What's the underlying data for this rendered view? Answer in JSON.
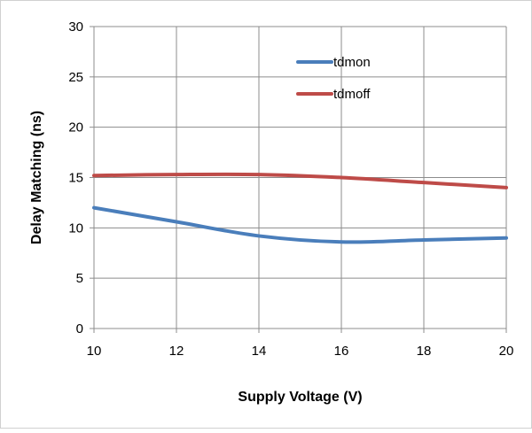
{
  "chart_data": {
    "type": "line",
    "title": "",
    "xlabel": "Supply Voltage (V)",
    "ylabel": "Delay Matching (ns)",
    "xlim": [
      10,
      20
    ],
    "ylim": [
      0,
      30
    ],
    "x_ticks": [
      10,
      12,
      14,
      16,
      18,
      20
    ],
    "y_ticks": [
      0,
      5,
      10,
      15,
      20,
      25,
      30
    ],
    "grid": true,
    "legend_position": "top-right",
    "series": [
      {
        "name": "tdmon",
        "color": "#4a7ebb",
        "x": [
          10,
          12,
          14,
          16,
          18,
          20
        ],
        "y": [
          12.0,
          10.6,
          9.2,
          8.6,
          8.8,
          9.0
        ]
      },
      {
        "name": "tdmoff",
        "color": "#be4b48",
        "x": [
          10,
          12,
          14,
          16,
          18,
          20
        ],
        "y": [
          15.2,
          15.3,
          15.3,
          15.0,
          14.5,
          14.0
        ]
      }
    ]
  }
}
